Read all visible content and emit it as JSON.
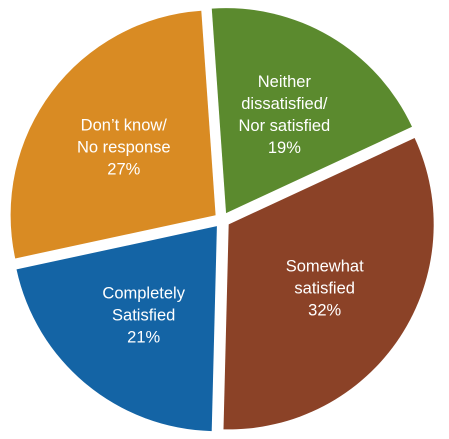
{
  "chart_data": {
    "type": "pie",
    "start_angle_deg": -4,
    "exploded": true,
    "slices": [
      {
        "label_lines": [
          "Neither",
          "dissatisfied/",
          "Nor satisfied"
        ],
        "percent_label": "19%",
        "value": 19,
        "color": "#5b8a2e"
      },
      {
        "label_lines": [
          "Somewhat",
          "satisfied"
        ],
        "percent_label": "32%",
        "value": 32,
        "color": "#8b4227"
      },
      {
        "label_lines": [
          "Completely",
          "Satisfied"
        ],
        "percent_label": "21%",
        "value": 21,
        "color": "#1464a5"
      },
      {
        "label_lines": [
          "Don’t know/",
          "No response"
        ],
        "percent_label": "27%",
        "value": 27,
        "color": "#d98b23"
      }
    ]
  }
}
